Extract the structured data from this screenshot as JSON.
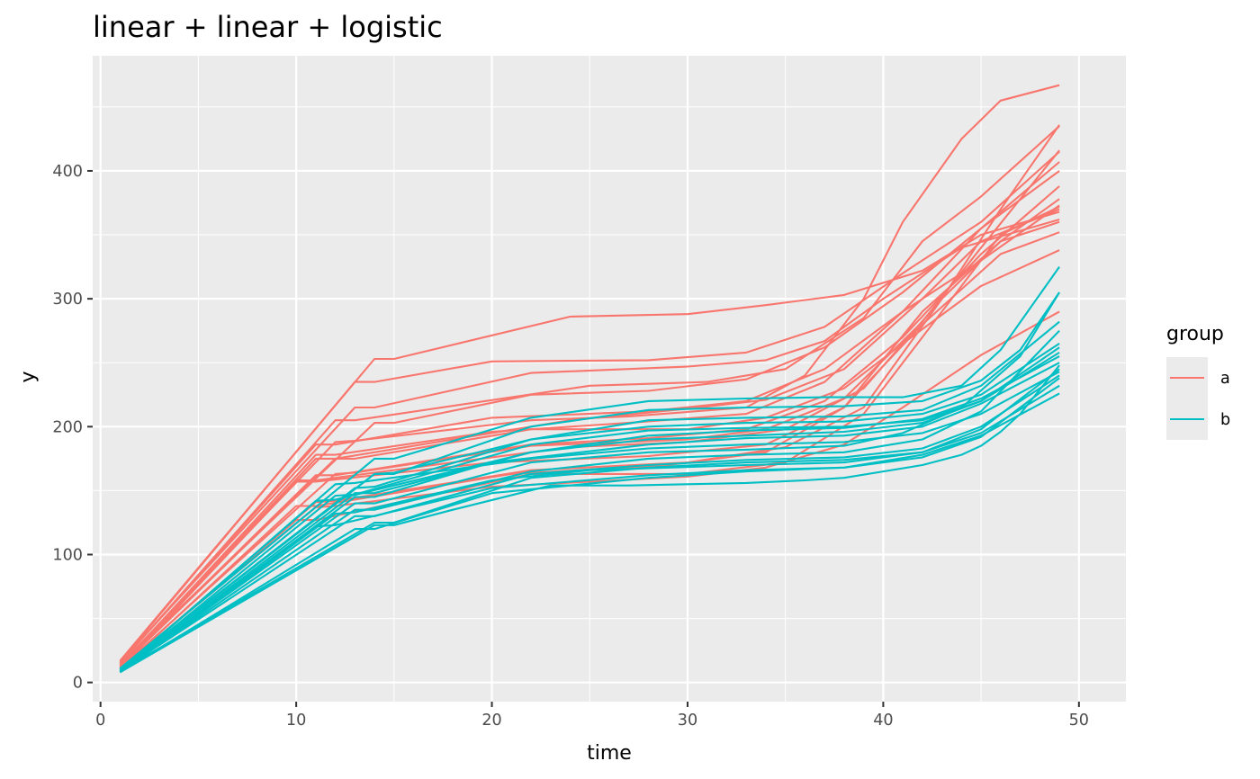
{
  "chart_data": {
    "type": "line",
    "title": "linear + linear + logistic",
    "xlabel": "time",
    "ylabel": "y",
    "xlim": [
      -0.4,
      52.4
    ],
    "ylim": [
      -15,
      490
    ],
    "x_ticks": [
      0,
      10,
      20,
      30,
      40,
      50
    ],
    "y_ticks": [
      0,
      100,
      200,
      300,
      400
    ],
    "grid": true,
    "legend": {
      "title": "group",
      "position": "right",
      "entries": [
        {
          "label": "a",
          "color": "#F8766D"
        },
        {
          "label": "b",
          "color": "#00BFC4"
        }
      ]
    },
    "series": [
      {
        "group": "a",
        "x": [
          1,
          14,
          15,
          24,
          30,
          34,
          38,
          42,
          45,
          49
        ],
        "y": [
          17,
          253,
          253,
          286,
          288,
          295,
          303,
          322,
          350,
          368
        ]
      },
      {
        "group": "a",
        "x": [
          1,
          13,
          14,
          20,
          28,
          33,
          37,
          41,
          45,
          49
        ],
        "y": [
          16,
          235,
          235,
          251,
          252,
          258,
          278,
          320,
          360,
          415
        ]
      },
      {
        "group": "a",
        "x": [
          1,
          13,
          14,
          22,
          30,
          34,
          37,
          40,
          44,
          49
        ],
        "y": [
          16,
          215,
          215,
          242,
          247,
          252,
          267,
          300,
          340,
          362
        ]
      },
      {
        "group": "a",
        "x": [
          1,
          12,
          13,
          25,
          31,
          35,
          39,
          42,
          45,
          49
        ],
        "y": [
          15,
          205,
          205,
          232,
          235,
          245,
          285,
          345,
          380,
          435
        ]
      },
      {
        "group": "a",
        "x": [
          1,
          14,
          15,
          22,
          28,
          33,
          37,
          41,
          45,
          49
        ],
        "y": [
          14,
          203,
          203,
          225,
          228,
          237,
          262,
          305,
          355,
          400
        ]
      },
      {
        "group": "a",
        "x": [
          1,
          11,
          12,
          20,
          28,
          33,
          37,
          41,
          45,
          49
        ],
        "y": [
          15,
          186,
          186,
          207,
          212,
          220,
          245,
          290,
          330,
          373
        ]
      },
      {
        "group": "a",
        "x": [
          1,
          12,
          13,
          22,
          27,
          33,
          36,
          39,
          41,
          44,
          46,
          49
        ],
        "y": [
          14,
          188,
          189,
          205,
          208,
          215,
          240,
          300,
          360,
          425,
          455,
          467
        ]
      },
      {
        "group": "a",
        "x": [
          1,
          11,
          12,
          20,
          27,
          33,
          37,
          41,
          45,
          49
        ],
        "y": [
          13,
          178,
          178,
          196,
          203,
          210,
          235,
          290,
          355,
          407
        ]
      },
      {
        "group": "a",
        "x": [
          1,
          11,
          12,
          24,
          30,
          34,
          38,
          42,
          45,
          49
        ],
        "y": [
          13,
          175,
          175,
          205,
          214,
          221,
          245,
          300,
          345,
          370
        ]
      },
      {
        "group": "a",
        "x": [
          1,
          12,
          13,
          22,
          30,
          34,
          38,
          41,
          45,
          49
        ],
        "y": [
          12,
          175,
          175,
          198,
          198,
          207,
          230,
          265,
          310,
          338
        ]
      },
      {
        "group": "a",
        "x": [
          1,
          11,
          12,
          22,
          28,
          33,
          37,
          41,
          45,
          49
        ],
        "y": [
          12,
          162,
          162,
          186,
          191,
          198,
          220,
          270,
          335,
          388
        ]
      },
      {
        "group": "a",
        "x": [
          1,
          12,
          13,
          22,
          30,
          34,
          38,
          42,
          45,
          49
        ],
        "y": [
          11,
          163,
          164,
          185,
          190,
          198,
          222,
          282,
          340,
          416
        ]
      },
      {
        "group": "a",
        "x": [
          1,
          10,
          11,
          24,
          30,
          35,
          39,
          43,
          46,
          49
        ],
        "y": [
          11,
          158,
          158,
          184,
          188,
          198,
          230,
          300,
          345,
          360
        ]
      },
      {
        "group": "a",
        "x": [
          1,
          10,
          11,
          20,
          28,
          34,
          38,
          42,
          46,
          49
        ],
        "y": [
          11,
          157,
          157,
          172,
          177,
          186,
          215,
          280,
          335,
          352
        ]
      },
      {
        "group": "a",
        "x": [
          1,
          11,
          12,
          22,
          30,
          35,
          39,
          43,
          46,
          49
        ],
        "y": [
          10,
          141,
          142,
          166,
          172,
          184,
          215,
          300,
          370,
          436
        ]
      },
      {
        "group": "a",
        "x": [
          1,
          10,
          11,
          21,
          29,
          34,
          38,
          42,
          46,
          49
        ],
        "y": [
          10,
          138,
          138,
          163,
          170,
          180,
          215,
          290,
          345,
          378
        ]
      },
      {
        "group": "a",
        "x": [
          1,
          10,
          11,
          22,
          30,
          35,
          39,
          43,
          46,
          49
        ],
        "y": [
          10,
          127,
          127,
          163,
          163,
          172,
          210,
          290,
          350,
          372
        ]
      },
      {
        "group": "a",
        "x": [
          1,
          11,
          12,
          20,
          25,
          30,
          34,
          38,
          41,
          45,
          49
        ],
        "y": [
          11,
          137,
          138,
          153,
          157,
          161,
          168,
          186,
          215,
          256,
          290
        ]
      },
      {
        "group": "b",
        "x": [
          1,
          14,
          15,
          22,
          28,
          33,
          37,
          41,
          44,
          46,
          49
        ],
        "y": [
          11,
          175,
          175,
          207,
          220,
          222,
          223,
          223,
          232,
          260,
          325
        ]
      },
      {
        "group": "b",
        "x": [
          1,
          14,
          15,
          22,
          28,
          33,
          38,
          42,
          45,
          47,
          49
        ],
        "y": [
          10,
          163,
          163,
          200,
          213,
          215,
          216,
          220,
          236,
          260,
          305
        ]
      },
      {
        "group": "b",
        "x": [
          1,
          13,
          14,
          22,
          28,
          33,
          38,
          42,
          45,
          49
        ],
        "y": [
          10,
          152,
          153,
          190,
          205,
          207,
          208,
          213,
          232,
          282
        ]
      },
      {
        "group": "b",
        "x": [
          1,
          14,
          15,
          22,
          28,
          33,
          38,
          42,
          45,
          49
        ],
        "y": [
          10,
          163,
          164,
          190,
          200,
          203,
          204,
          210,
          225,
          265
        ]
      },
      {
        "group": "b",
        "x": [
          1,
          13,
          14,
          22,
          28,
          33,
          38,
          42,
          45,
          49
        ],
        "y": [
          9,
          148,
          148,
          180,
          193,
          197,
          199,
          206,
          222,
          255
        ]
      },
      {
        "group": "b",
        "x": [
          1,
          13,
          14,
          20,
          28,
          33,
          38,
          42,
          45,
          49
        ],
        "y": [
          9,
          145,
          145,
          172,
          186,
          191,
          193,
          200,
          218,
          250
        ]
      },
      {
        "group": "b",
        "x": [
          1,
          13,
          14,
          22,
          28,
          33,
          38,
          41,
          44,
          47,
          49
        ],
        "y": [
          9,
          140,
          140,
          172,
          180,
          182,
          185,
          195,
          215,
          255,
          305
        ]
      },
      {
        "group": "b",
        "x": [
          1,
          13,
          14,
          22,
          28,
          33,
          38,
          42,
          45,
          49
        ],
        "y": [
          9,
          135,
          135,
          165,
          175,
          178,
          180,
          190,
          212,
          275
        ]
      },
      {
        "group": "b",
        "x": [
          1,
          13,
          14,
          22,
          28,
          33,
          38,
          42,
          45,
          49
        ],
        "y": [
          9,
          130,
          130,
          163,
          170,
          174,
          176,
          183,
          200,
          240
        ]
      },
      {
        "group": "b",
        "x": [
          1,
          14,
          15,
          22,
          28,
          33,
          38,
          42,
          45,
          49
        ],
        "y": [
          9,
          125,
          125,
          160,
          168,
          172,
          174,
          180,
          195,
          232
        ]
      },
      {
        "group": "b",
        "x": [
          1,
          13,
          14,
          20,
          28,
          33,
          38,
          42,
          45,
          49
        ],
        "y": [
          8,
          120,
          120,
          148,
          160,
          165,
          168,
          178,
          193,
          226
        ]
      },
      {
        "group": "b",
        "x": [
          1,
          14,
          15,
          18,
          23,
          27,
          30,
          33,
          36,
          38,
          40,
          42,
          44,
          45,
          46,
          47,
          49
        ],
        "y": [
          8,
          123,
          123,
          135,
          154,
          154,
          155,
          156,
          158,
          160,
          165,
          170,
          178,
          185,
          196,
          210,
          248
        ]
      },
      {
        "group": "b",
        "x": [
          1,
          12,
          13,
          22,
          28,
          33,
          38,
          42,
          45,
          49
        ],
        "y": [
          9,
          155,
          156,
          175,
          183,
          186,
          188,
          195,
          210,
          243
        ]
      },
      {
        "group": "b",
        "x": [
          1,
          11,
          12,
          22,
          28,
          33,
          38,
          42,
          45,
          49
        ],
        "y": [
          9,
          142,
          143,
          180,
          190,
          193,
          196,
          203,
          220,
          262
        ]
      },
      {
        "group": "b",
        "x": [
          1,
          12,
          13,
          22,
          28,
          33,
          38,
          42,
          45,
          49
        ],
        "y": [
          9,
          146,
          147,
          186,
          197,
          199,
          200,
          205,
          220,
          258
        ]
      },
      {
        "group": "b",
        "x": [
          1,
          12,
          13,
          20,
          25,
          33,
          38,
          42,
          45,
          49
        ],
        "y": [
          8,
          132,
          133,
          158,
          166,
          170,
          172,
          180,
          198,
          245
        ]
      },
      {
        "group": "b",
        "x": [
          1,
          11,
          12,
          20,
          28,
          33,
          38,
          42,
          45,
          49
        ],
        "y": [
          8,
          122,
          123,
          152,
          162,
          166,
          168,
          176,
          192,
          238
        ]
      }
    ]
  }
}
